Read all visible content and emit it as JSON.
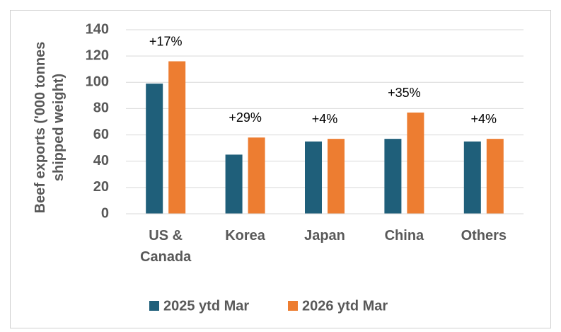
{
  "chart_data": {
    "type": "bar",
    "y_label": "Beef exports ('000 tonnes shipped weight)",
    "categories": [
      "US & Canada",
      "Korea",
      "Japan",
      "China",
      "Others"
    ],
    "series": [
      {
        "name": "2025 ytd Mar",
        "color": "#1f5f7a",
        "values": [
          99,
          45,
          55,
          57,
          55
        ]
      },
      {
        "name": "2026 ytd Mar",
        "color": "#ed7d31",
        "values": [
          116,
          58,
          57,
          77,
          57
        ]
      }
    ],
    "annotations": [
      "+17%",
      "+29%",
      "+4%",
      "+35%",
      "+4%"
    ],
    "ylim": [
      0,
      140
    ],
    "yticks": [
      0,
      20,
      40,
      60,
      80,
      100,
      120,
      140
    ],
    "grid": true
  }
}
